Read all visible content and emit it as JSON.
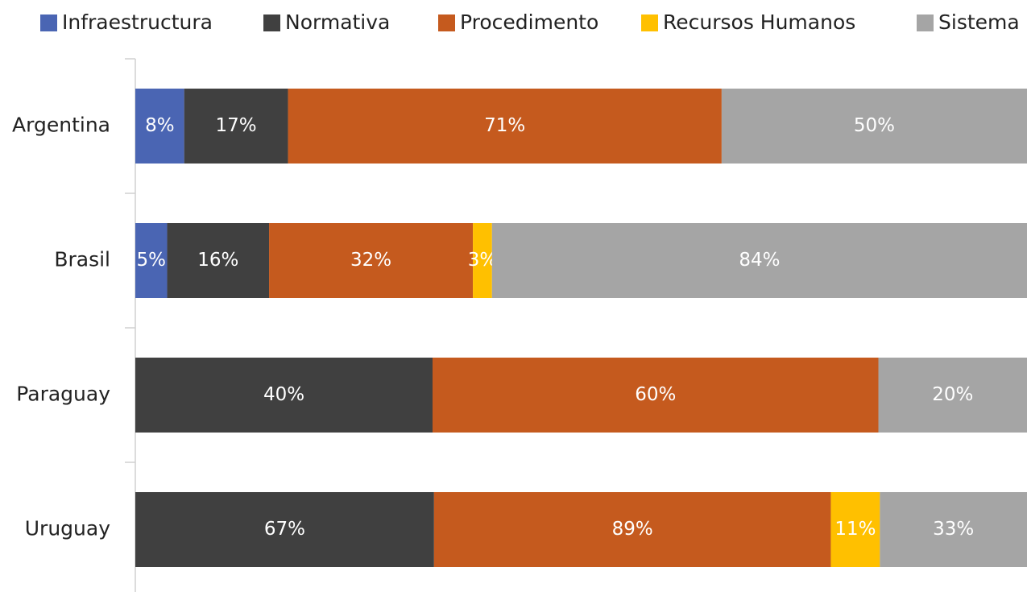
{
  "chart_data": {
    "type": "bar",
    "orientation": "horizontal",
    "stacking": "percent",
    "categories": [
      "Argentina",
      "Brasil",
      "Paraguay",
      "Uruguay"
    ],
    "series": [
      {
        "name": "Infraestructura",
        "color": "#4a65b3",
        "values": [
          8,
          5,
          null,
          null
        ],
        "value_labels": [
          "8%",
          "5%",
          null,
          null
        ]
      },
      {
        "name": "Normativa",
        "color": "#404040",
        "values": [
          17,
          16,
          40,
          67
        ],
        "value_labels": [
          "17%",
          "16%",
          "40%",
          "67%"
        ]
      },
      {
        "name": "Procedimento",
        "color": "#c55a1e",
        "values": [
          71,
          32,
          60,
          89
        ],
        "value_labels": [
          "71%",
          "32%",
          "60%",
          "89%"
        ]
      },
      {
        "name": "Recursos Humanos",
        "color": "#ffc000",
        "values": [
          null,
          3,
          null,
          11
        ],
        "value_labels": [
          null,
          "3%",
          null,
          "11%"
        ]
      },
      {
        "name": "Sistema",
        "color": "#a5a5a5",
        "values": [
          50,
          84,
          20,
          33
        ],
        "value_labels": [
          "50%",
          "84%",
          "20%",
          "33%"
        ]
      }
    ],
    "legend": "top"
  }
}
